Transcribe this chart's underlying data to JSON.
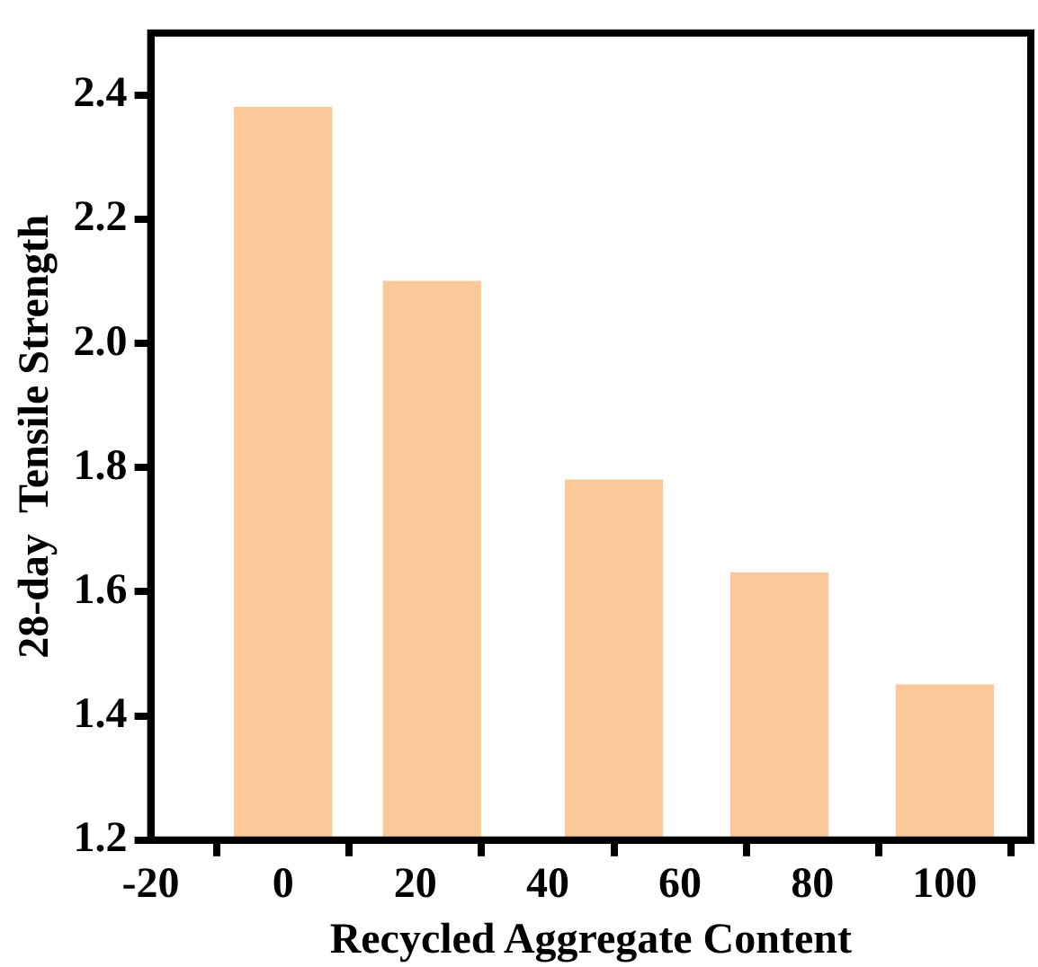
{
  "chart_data": {
    "type": "bar",
    "xlabel": "Recycled Aggregate Content",
    "ylabel": "28-day  Tensile Strength",
    "x": [
      0,
      22.5,
      50,
      75,
      100
    ],
    "values": [
      2.38,
      2.1,
      1.78,
      1.63,
      1.45
    ],
    "color": "#fbc999",
    "xlim": [
      -20,
      113
    ],
    "xticks": [
      -20,
      0,
      20,
      40,
      60,
      80,
      100
    ],
    "ylim": [
      1.2,
      2.5
    ],
    "yticks": [
      1.2,
      1.4,
      1.6,
      1.8,
      {
        "value": 2,
        "label": "2.0"
      },
      2.2,
      2.4
    ],
    "grid": false,
    "legend": false
  }
}
